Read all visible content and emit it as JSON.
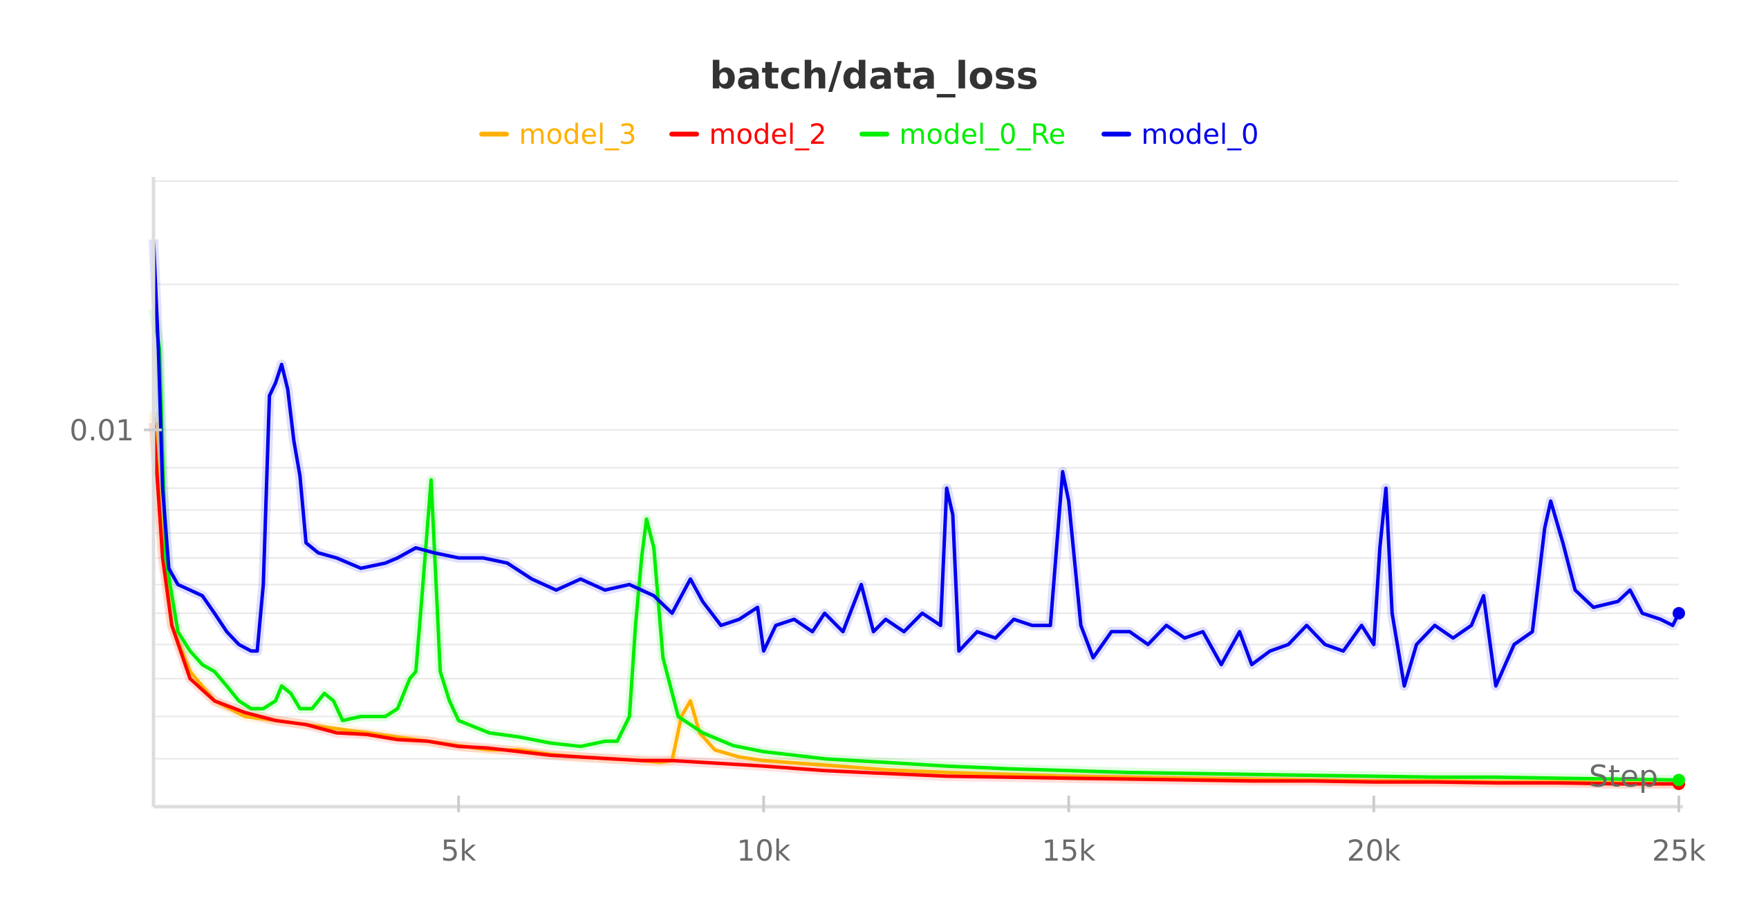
{
  "chart_data": {
    "type": "line",
    "title": "batch/data_loss",
    "xlabel": "Step",
    "ylabel": "",
    "y_scale": "log",
    "xlim": [
      0,
      25000
    ],
    "ylim": [
      0.0035,
      0.02
    ],
    "x_ticks": [
      {
        "value": 5000,
        "label": "5k"
      },
      {
        "value": 10000,
        "label": "10k"
      },
      {
        "value": 15000,
        "label": "15k"
      },
      {
        "value": 20000,
        "label": "20k"
      },
      {
        "value": 25000,
        "label": "25k"
      }
    ],
    "y_ticks": [
      {
        "value": 0.01,
        "label": "0.01"
      }
    ],
    "grid": true,
    "legend_position": "top-center",
    "series": [
      {
        "name": "model_3",
        "color": "#FFB000",
        "points": [
          [
            0,
            0.0105
          ],
          [
            150,
            0.0072
          ],
          [
            300,
            0.0058
          ],
          [
            600,
            0.0051
          ],
          [
            1000,
            0.0047
          ],
          [
            1500,
            0.0045
          ],
          [
            2000,
            0.00445
          ],
          [
            2500,
            0.0044
          ],
          [
            3000,
            0.00435
          ],
          [
            3500,
            0.0043
          ],
          [
            4000,
            0.00425
          ],
          [
            4500,
            0.0042
          ],
          [
            5000,
            0.00415
          ],
          [
            5500,
            0.0041
          ],
          [
            6000,
            0.0041
          ],
          [
            6500,
            0.00405
          ],
          [
            7000,
            0.00402
          ],
          [
            7500,
            0.004
          ],
          [
            8000,
            0.00398
          ],
          [
            8300,
            0.00396
          ],
          [
            8500,
            0.00398
          ],
          [
            8650,
            0.0045
          ],
          [
            8800,
            0.0047
          ],
          [
            8950,
            0.0043
          ],
          [
            9200,
            0.0041
          ],
          [
            9600,
            0.00402
          ],
          [
            10000,
            0.00398
          ],
          [
            11000,
            0.00393
          ],
          [
            12000,
            0.00388
          ],
          [
            13000,
            0.00385
          ],
          [
            14000,
            0.00383
          ],
          [
            15000,
            0.00381
          ],
          [
            16000,
            0.0038
          ],
          [
            17000,
            0.00379
          ],
          [
            18000,
            0.00378
          ],
          [
            19000,
            0.00377
          ],
          [
            20000,
            0.00376
          ],
          [
            21000,
            0.00376
          ],
          [
            22000,
            0.00375
          ],
          [
            23000,
            0.00375
          ],
          [
            24000,
            0.00374
          ],
          [
            25000,
            0.00373
          ]
        ]
      },
      {
        "name": "model_2",
        "color": "#FF0000",
        "points": [
          [
            0,
            0.0102
          ],
          [
            150,
            0.007
          ],
          [
            300,
            0.0058
          ],
          [
            600,
            0.005
          ],
          [
            1000,
            0.0047
          ],
          [
            1500,
            0.00455
          ],
          [
            2000,
            0.00445
          ],
          [
            2500,
            0.0044
          ],
          [
            3000,
            0.0043
          ],
          [
            3500,
            0.00428
          ],
          [
            4000,
            0.00422
          ],
          [
            4500,
            0.0042
          ],
          [
            5000,
            0.00414
          ],
          [
            5500,
            0.00412
          ],
          [
            6000,
            0.00408
          ],
          [
            6500,
            0.00404
          ],
          [
            7000,
            0.00402
          ],
          [
            7500,
            0.004
          ],
          [
            8000,
            0.00398
          ],
          [
            8500,
            0.00398
          ],
          [
            9000,
            0.00396
          ],
          [
            9500,
            0.00394
          ],
          [
            10000,
            0.00392
          ],
          [
            11000,
            0.00387
          ],
          [
            12000,
            0.00384
          ],
          [
            13000,
            0.00381
          ],
          [
            14000,
            0.0038
          ],
          [
            15000,
            0.00379
          ],
          [
            16000,
            0.00378
          ],
          [
            17000,
            0.00377
          ],
          [
            18000,
            0.00376
          ],
          [
            19000,
            0.00376
          ],
          [
            20000,
            0.00375
          ],
          [
            21000,
            0.00375
          ],
          [
            22000,
            0.00374
          ],
          [
            23000,
            0.00374
          ],
          [
            24000,
            0.00373
          ],
          [
            25000,
            0.00373
          ]
        ]
      },
      {
        "name": "model_0_Re",
        "color": "#00EE00",
        "points": [
          [
            0,
            0.014
          ],
          [
            100,
            0.0125
          ],
          [
            200,
            0.007
          ],
          [
            400,
            0.0057
          ],
          [
            600,
            0.0054
          ],
          [
            800,
            0.0052
          ],
          [
            1000,
            0.0051
          ],
          [
            1200,
            0.0049
          ],
          [
            1400,
            0.0047
          ],
          [
            1600,
            0.0046
          ],
          [
            1800,
            0.0046
          ],
          [
            2000,
            0.0047
          ],
          [
            2100,
            0.0049
          ],
          [
            2250,
            0.0048
          ],
          [
            2400,
            0.0046
          ],
          [
            2600,
            0.0046
          ],
          [
            2800,
            0.0048
          ],
          [
            2950,
            0.0047
          ],
          [
            3100,
            0.00445
          ],
          [
            3400,
            0.0045
          ],
          [
            3800,
            0.0045
          ],
          [
            4000,
            0.0046
          ],
          [
            4200,
            0.005
          ],
          [
            4300,
            0.0051
          ],
          [
            4400,
            0.0063
          ],
          [
            4550,
            0.0087
          ],
          [
            4700,
            0.0051
          ],
          [
            4850,
            0.0047
          ],
          [
            5000,
            0.00445
          ],
          [
            5500,
            0.0043
          ],
          [
            6000,
            0.00425
          ],
          [
            6500,
            0.00418
          ],
          [
            7000,
            0.00414
          ],
          [
            7400,
            0.0042
          ],
          [
            7600,
            0.0042
          ],
          [
            7800,
            0.0045
          ],
          [
            7900,
            0.0058
          ],
          [
            8000,
            0.007
          ],
          [
            8080,
            0.0078
          ],
          [
            8200,
            0.0072
          ],
          [
            8350,
            0.0053
          ],
          [
            8600,
            0.0045
          ],
          [
            9000,
            0.0043
          ],
          [
            9500,
            0.00415
          ],
          [
            10000,
            0.00408
          ],
          [
            11000,
            0.004
          ],
          [
            12000,
            0.00396
          ],
          [
            13000,
            0.00392
          ],
          [
            14000,
            0.00389
          ],
          [
            15000,
            0.00387
          ],
          [
            16000,
            0.00385
          ],
          [
            17000,
            0.00384
          ],
          [
            18000,
            0.00383
          ],
          [
            19000,
            0.00382
          ],
          [
            20000,
            0.00381
          ],
          [
            21000,
            0.0038
          ],
          [
            22000,
            0.0038
          ],
          [
            23000,
            0.00379
          ],
          [
            24000,
            0.00378
          ],
          [
            25000,
            0.00377
          ]
        ]
      },
      {
        "name": "model_0",
        "color": "#0000EE",
        "points": [
          [
            0,
            0.017
          ],
          [
            80,
            0.0125
          ],
          [
            150,
            0.0085
          ],
          [
            250,
            0.0068
          ],
          [
            400,
            0.0065
          ],
          [
            600,
            0.0064
          ],
          [
            800,
            0.0063
          ],
          [
            1000,
            0.006
          ],
          [
            1200,
            0.0057
          ],
          [
            1400,
            0.0055
          ],
          [
            1600,
            0.0054
          ],
          [
            1700,
            0.0054
          ],
          [
            1800,
            0.0065
          ],
          [
            1900,
            0.011
          ],
          [
            2000,
            0.0114
          ],
          [
            2100,
            0.012
          ],
          [
            2200,
            0.0112
          ],
          [
            2300,
            0.0097
          ],
          [
            2400,
            0.0088
          ],
          [
            2500,
            0.0073
          ],
          [
            2700,
            0.0071
          ],
          [
            3000,
            0.007
          ],
          [
            3400,
            0.0068
          ],
          [
            3800,
            0.0069
          ],
          [
            4000,
            0.007
          ],
          [
            4300,
            0.0072
          ],
          [
            4600,
            0.0071
          ],
          [
            5000,
            0.007
          ],
          [
            5400,
            0.007
          ],
          [
            5800,
            0.0069
          ],
          [
            6200,
            0.0066
          ],
          [
            6600,
            0.0064
          ],
          [
            7000,
            0.0066
          ],
          [
            7400,
            0.0064
          ],
          [
            7800,
            0.0065
          ],
          [
            8200,
            0.0063
          ],
          [
            8500,
            0.006
          ],
          [
            8800,
            0.0066
          ],
          [
            9000,
            0.0062
          ],
          [
            9300,
            0.0058
          ],
          [
            9600,
            0.0059
          ],
          [
            9900,
            0.0061
          ],
          [
            10000,
            0.0054
          ],
          [
            10200,
            0.0058
          ],
          [
            10500,
            0.0059
          ],
          [
            10800,
            0.0057
          ],
          [
            11000,
            0.006
          ],
          [
            11300,
            0.0057
          ],
          [
            11600,
            0.0065
          ],
          [
            11800,
            0.0057
          ],
          [
            12000,
            0.0059
          ],
          [
            12300,
            0.0057
          ],
          [
            12600,
            0.006
          ],
          [
            12900,
            0.0058
          ],
          [
            13000,
            0.0085
          ],
          [
            13100,
            0.0079
          ],
          [
            13200,
            0.0054
          ],
          [
            13500,
            0.0057
          ],
          [
            13800,
            0.0056
          ],
          [
            14100,
            0.0059
          ],
          [
            14400,
            0.0058
          ],
          [
            14700,
            0.0058
          ],
          [
            14900,
            0.0089
          ],
          [
            15000,
            0.0082
          ],
          [
            15200,
            0.0058
          ],
          [
            15400,
            0.0053
          ],
          [
            15700,
            0.0057
          ],
          [
            16000,
            0.0057
          ],
          [
            16300,
            0.0055
          ],
          [
            16600,
            0.0058
          ],
          [
            16900,
            0.0056
          ],
          [
            17200,
            0.0057
          ],
          [
            17500,
            0.0052
          ],
          [
            17800,
            0.0057
          ],
          [
            18000,
            0.0052
          ],
          [
            18300,
            0.0054
          ],
          [
            18600,
            0.0055
          ],
          [
            18900,
            0.0058
          ],
          [
            19200,
            0.0055
          ],
          [
            19500,
            0.0054
          ],
          [
            19800,
            0.0058
          ],
          [
            20000,
            0.0055
          ],
          [
            20100,
            0.0072
          ],
          [
            20200,
            0.0085
          ],
          [
            20300,
            0.006
          ],
          [
            20500,
            0.0049
          ],
          [
            20700,
            0.0055
          ],
          [
            21000,
            0.0058
          ],
          [
            21300,
            0.0056
          ],
          [
            21600,
            0.0058
          ],
          [
            21800,
            0.0063
          ],
          [
            22000,
            0.0049
          ],
          [
            22300,
            0.0055
          ],
          [
            22600,
            0.0057
          ],
          [
            22800,
            0.0076
          ],
          [
            22900,
            0.0082
          ],
          [
            23100,
            0.0073
          ],
          [
            23300,
            0.0064
          ],
          [
            23600,
            0.0061
          ],
          [
            24000,
            0.0062
          ],
          [
            24200,
            0.0064
          ],
          [
            24400,
            0.006
          ],
          [
            24700,
            0.0059
          ],
          [
            24900,
            0.0058
          ],
          [
            25000,
            0.006
          ]
        ]
      }
    ]
  }
}
